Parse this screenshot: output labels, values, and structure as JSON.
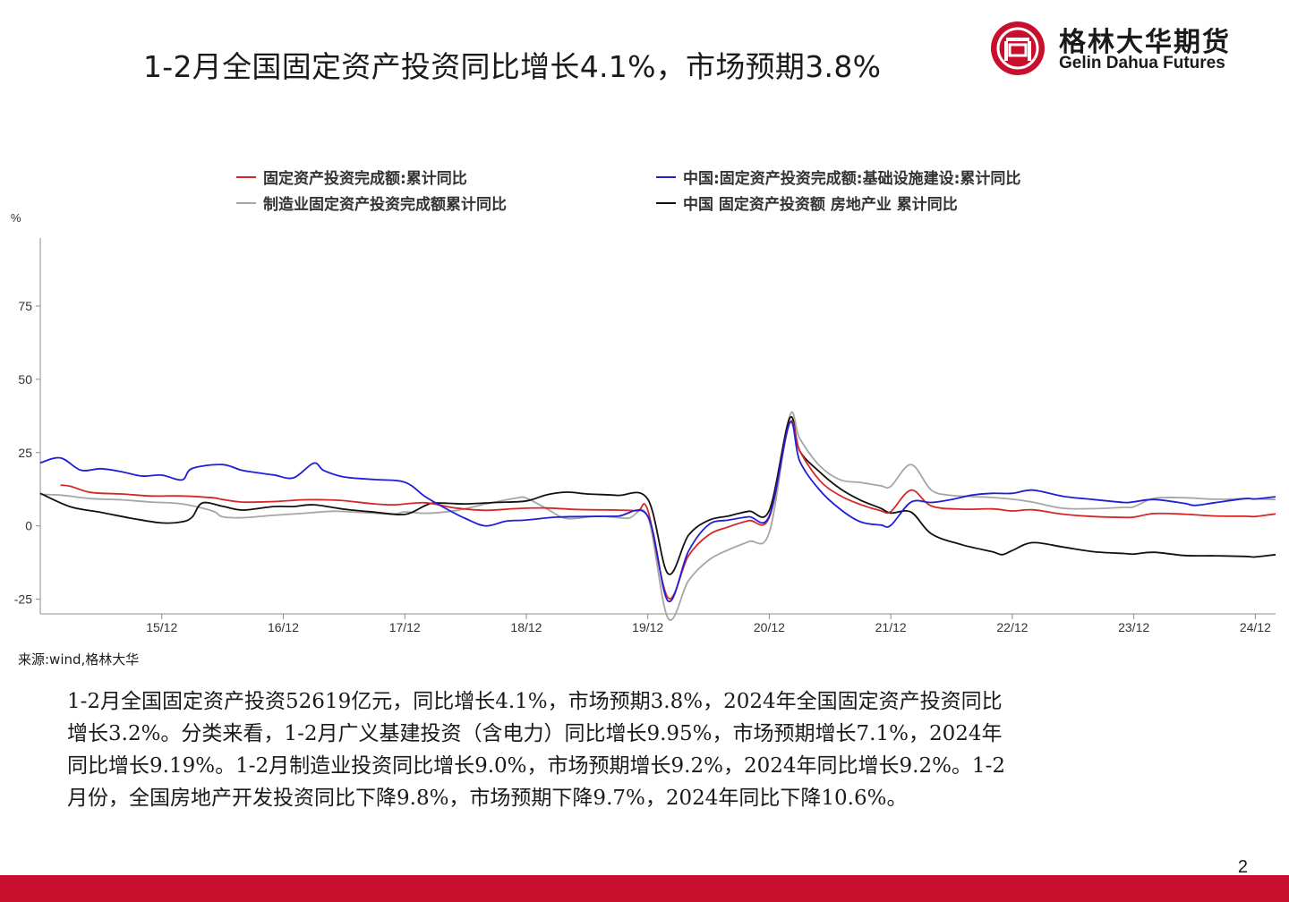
{
  "slide": {
    "title": "1-2月全国固定资产投资同比增长4.1%，市场预期3.8%",
    "source": "来源:wind,格林大华",
    "page_number": "2",
    "body_lines": [
      "1-2月全国固定资产投资52619亿元，同比增长4.1%，市场预期3.8%，2024年全国固定资产投资同比",
      "增长3.2%。分类来看，1-2月广义基建投资（含电力）同比增长9.95%，市场预期增长7.1%，2024年",
      "同比增长9.19%。1-2月制造业投资同比增长9.0%，市场预期增长9.2%，2024年同比增长9.2%。1-2",
      "月份，全国房地产开发投资同比下降9.8%，市场预期下降9.7%，2024年同比下降10.6%。"
    ]
  },
  "logo": {
    "name_cn": "格林大华期货",
    "name_en": "Gelin Dahua Futures"
  },
  "colors": {
    "brand_red": "#c8102e",
    "series_red": "#d62728",
    "series_blue": "#1f1fd6",
    "series_gray": "#a6a6a6",
    "series_black": "#111111",
    "axis": "#8c8c8c"
  },
  "chart_data": {
    "type": "line",
    "title": "",
    "xlabel": "",
    "ylabel": "%",
    "ylim": [
      -30,
      100
    ],
    "yticks": [
      -25,
      0,
      25,
      50,
      75
    ],
    "xlim": [
      "2014-12",
      "2025-02"
    ],
    "xticks": [
      "15/12",
      "16/12",
      "17/12",
      "18/12",
      "19/12",
      "20/12",
      "21/12",
      "22/12",
      "23/12",
      "24/12"
    ],
    "grid": false,
    "legend_position": "top",
    "series": [
      {
        "name": "固定资产投资完成额:累计同比",
        "color": "#d62728",
        "points": [
          [
            "2015-02",
            13.9
          ],
          [
            "2015-03",
            13.5
          ],
          [
            "2015-05",
            11.4
          ],
          [
            "2015-08",
            10.9
          ],
          [
            "2015-11",
            10.2
          ],
          [
            "2016-02",
            10.2
          ],
          [
            "2016-05",
            9.6
          ],
          [
            "2016-06",
            9.0
          ],
          [
            "2016-08",
            8.1
          ],
          [
            "2016-11",
            8.3
          ],
          [
            "2017-02",
            8.9
          ],
          [
            "2017-04",
            8.9
          ],
          [
            "2017-06",
            8.6
          ],
          [
            "2017-09",
            7.5
          ],
          [
            "2017-11",
            7.2
          ],
          [
            "2018-02",
            7.9
          ],
          [
            "2018-05",
            6.1
          ],
          [
            "2018-08",
            5.3
          ],
          [
            "2018-11",
            5.9
          ],
          [
            "2019-02",
            6.1
          ],
          [
            "2019-05",
            5.6
          ],
          [
            "2019-09",
            5.4
          ],
          [
            "2019-11",
            5.2
          ],
          [
            "2019-12",
            5.4
          ],
          [
            "2020-02",
            -24.5
          ],
          [
            "2020-04",
            -10.3
          ],
          [
            "2020-06",
            -3.1
          ],
          [
            "2020-08",
            -0.3
          ],
          [
            "2020-10",
            1.8
          ],
          [
            "2020-12",
            2.9
          ],
          [
            "2021-02",
            35.0
          ],
          [
            "2021-03",
            25.6
          ],
          [
            "2021-05",
            15.4
          ],
          [
            "2021-07",
            10.3
          ],
          [
            "2021-09",
            7.3
          ],
          [
            "2021-11",
            5.2
          ],
          [
            "2021-12",
            4.9
          ],
          [
            "2022-02",
            12.2
          ],
          [
            "2022-04",
            6.8
          ],
          [
            "2022-07",
            5.7
          ],
          [
            "2022-10",
            5.8
          ],
          [
            "2022-12",
            5.1
          ],
          [
            "2023-02",
            5.5
          ],
          [
            "2023-05",
            4.0
          ],
          [
            "2023-08",
            3.2
          ],
          [
            "2023-11",
            2.9
          ],
          [
            "2023-12",
            3.0
          ],
          [
            "2024-02",
            4.2
          ],
          [
            "2024-05",
            4.0
          ],
          [
            "2024-08",
            3.4
          ],
          [
            "2024-11",
            3.3
          ],
          [
            "2024-12",
            3.2
          ],
          [
            "2025-02",
            4.1
          ]
        ]
      },
      {
        "name": "中国:固定资产投资完成额:基础设施建设:累计同比",
        "color": "#1f1fd6",
        "points": [
          [
            "2014-12",
            21.5
          ],
          [
            "2015-02",
            23.2
          ],
          [
            "2015-04",
            19.0
          ],
          [
            "2015-06",
            19.5
          ],
          [
            "2015-08",
            18.5
          ],
          [
            "2015-10",
            17.0
          ],
          [
            "2015-12",
            17.3
          ],
          [
            "2016-02",
            15.7
          ],
          [
            "2016-03",
            19.6
          ],
          [
            "2016-06",
            20.9
          ],
          [
            "2016-08",
            18.9
          ],
          [
            "2016-11",
            17.4
          ],
          [
            "2017-01",
            16.4
          ],
          [
            "2017-03",
            21.4
          ],
          [
            "2017-04",
            18.9
          ],
          [
            "2017-06",
            16.7
          ],
          [
            "2017-09",
            15.8
          ],
          [
            "2017-12",
            14.9
          ],
          [
            "2018-02",
            10.0
          ],
          [
            "2018-04",
            6.0
          ],
          [
            "2018-06",
            2.5
          ],
          [
            "2018-08",
            0.0
          ],
          [
            "2018-10",
            1.6
          ],
          [
            "2018-12",
            2.0
          ],
          [
            "2019-03",
            3.0
          ],
          [
            "2019-06",
            3.2
          ],
          [
            "2019-09",
            3.3
          ],
          [
            "2019-12",
            3.3
          ],
          [
            "2020-02",
            -25.6
          ],
          [
            "2020-04",
            -8.8
          ],
          [
            "2020-06",
            0.4
          ],
          [
            "2020-08",
            2.0
          ],
          [
            "2020-10",
            3.1
          ],
          [
            "2020-12",
            3.4
          ],
          [
            "2021-02",
            35.0
          ],
          [
            "2021-03",
            22.1
          ],
          [
            "2021-05",
            12.1
          ],
          [
            "2021-07",
            5.7
          ],
          [
            "2021-09",
            1.4
          ],
          [
            "2021-11",
            0.3
          ],
          [
            "2021-12",
            0.2
          ],
          [
            "2022-02",
            8.1
          ],
          [
            "2022-04",
            8.0
          ],
          [
            "2022-06",
            9.0
          ],
          [
            "2022-08",
            10.5
          ],
          [
            "2022-10",
            11.1
          ],
          [
            "2022-12",
            11.1
          ],
          [
            "2023-02",
            12.2
          ],
          [
            "2023-05",
            10.1
          ],
          [
            "2023-08",
            9.0
          ],
          [
            "2023-11",
            8.0
          ],
          [
            "2023-12",
            8.2
          ],
          [
            "2024-02",
            9.0
          ],
          [
            "2024-05",
            7.7
          ],
          [
            "2024-06",
            7.0
          ],
          [
            "2024-08",
            7.9
          ],
          [
            "2024-11",
            9.3
          ],
          [
            "2024-12",
            9.19
          ],
          [
            "2025-02",
            9.95
          ]
        ]
      },
      {
        "name": "制造业固定资产投资完成额累计同比",
        "color": "#a6a6a6",
        "points": [
          [
            "2014-12",
            10.7
          ],
          [
            "2015-02",
            10.5
          ],
          [
            "2015-05",
            9.3
          ],
          [
            "2015-08",
            8.9
          ],
          [
            "2015-11",
            8.1
          ],
          [
            "2016-02",
            7.5
          ],
          [
            "2016-05",
            5.1
          ],
          [
            "2016-06",
            3.1
          ],
          [
            "2016-08",
            2.8
          ],
          [
            "2016-11",
            3.6
          ],
          [
            "2017-02",
            4.3
          ],
          [
            "2017-05",
            5.0
          ],
          [
            "2017-08",
            4.5
          ],
          [
            "2017-11",
            4.1
          ],
          [
            "2017-12",
            4.8
          ],
          [
            "2018-02",
            4.3
          ],
          [
            "2018-05",
            5.2
          ],
          [
            "2018-08",
            7.5
          ],
          [
            "2018-11",
            9.5
          ],
          [
            "2018-12",
            9.5
          ],
          [
            "2019-02",
            5.9
          ],
          [
            "2019-04",
            2.5
          ],
          [
            "2019-07",
            3.3
          ],
          [
            "2019-10",
            2.6
          ],
          [
            "2019-12",
            3.1
          ],
          [
            "2020-02",
            -31.5
          ],
          [
            "2020-04",
            -18.8
          ],
          [
            "2020-06",
            -11.7
          ],
          [
            "2020-08",
            -8.1
          ],
          [
            "2020-10",
            -5.3
          ],
          [
            "2020-12",
            -2.2
          ],
          [
            "2021-02",
            37.3
          ],
          [
            "2021-03",
            29.8
          ],
          [
            "2021-05",
            20.4
          ],
          [
            "2021-07",
            15.7
          ],
          [
            "2021-09",
            14.8
          ],
          [
            "2021-11",
            13.7
          ],
          [
            "2021-12",
            13.5
          ],
          [
            "2022-02",
            20.9
          ],
          [
            "2022-04",
            12.2
          ],
          [
            "2022-06",
            10.4
          ],
          [
            "2022-08",
            10.0
          ],
          [
            "2022-10",
            9.7
          ],
          [
            "2022-12",
            9.1
          ],
          [
            "2023-02",
            8.1
          ],
          [
            "2023-05",
            6.0
          ],
          [
            "2023-08",
            5.9
          ],
          [
            "2023-11",
            6.3
          ],
          [
            "2023-12",
            6.5
          ],
          [
            "2024-02",
            9.4
          ],
          [
            "2024-05",
            9.6
          ],
          [
            "2024-08",
            9.1
          ],
          [
            "2024-11",
            9.3
          ],
          [
            "2024-12",
            9.2
          ],
          [
            "2025-02",
            9.0
          ]
        ]
      },
      {
        "name": "中国 固定资产投资额 房地产业 累计同比",
        "color": "#111111",
        "points": [
          [
            "2014-12",
            11.1
          ],
          [
            "2015-03",
            6.5
          ],
          [
            "2015-06",
            4.6
          ],
          [
            "2015-09",
            2.6
          ],
          [
            "2015-12",
            1.0
          ],
          [
            "2016-02",
            1.4
          ],
          [
            "2016-03",
            3.0
          ],
          [
            "2016-04",
            7.8
          ],
          [
            "2016-06",
            6.7
          ],
          [
            "2016-08",
            5.4
          ],
          [
            "2016-11",
            6.6
          ],
          [
            "2017-01",
            6.6
          ],
          [
            "2017-03",
            7.2
          ],
          [
            "2017-06",
            5.7
          ],
          [
            "2017-09",
            4.7
          ],
          [
            "2017-12",
            3.9
          ],
          [
            "2018-02",
            6.9
          ],
          [
            "2018-03",
            7.8
          ],
          [
            "2018-06",
            7.5
          ],
          [
            "2018-09",
            8.0
          ],
          [
            "2018-12",
            8.5
          ],
          [
            "2019-02",
            10.6
          ],
          [
            "2019-04",
            11.5
          ],
          [
            "2019-06",
            10.9
          ],
          [
            "2019-09",
            10.4
          ],
          [
            "2019-12",
            9.1
          ],
          [
            "2020-02",
            -16.3
          ],
          [
            "2020-04",
            -3.3
          ],
          [
            "2020-06",
            1.9
          ],
          [
            "2020-08",
            3.4
          ],
          [
            "2020-10",
            5.0
          ],
          [
            "2020-12",
            5.3
          ],
          [
            "2021-02",
            36.6
          ],
          [
            "2021-03",
            25.6
          ],
          [
            "2021-05",
            18.3
          ],
          [
            "2021-07",
            12.7
          ],
          [
            "2021-09",
            8.8
          ],
          [
            "2021-11",
            6.0
          ],
          [
            "2021-12",
            4.4
          ],
          [
            "2022-02",
            4.7
          ],
          [
            "2022-04",
            -2.7
          ],
          [
            "2022-07",
            -6.4
          ],
          [
            "2022-10",
            -8.8
          ],
          [
            "2022-11",
            -9.8
          ],
          [
            "2022-12",
            -8.4
          ],
          [
            "2023-02",
            -5.7
          ],
          [
            "2023-05",
            -7.2
          ],
          [
            "2023-08",
            -8.8
          ],
          [
            "2023-11",
            -9.4
          ],
          [
            "2023-12",
            -9.6
          ],
          [
            "2024-02",
            -9.0
          ],
          [
            "2024-05",
            -10.1
          ],
          [
            "2024-08",
            -10.2
          ],
          [
            "2024-11",
            -10.4
          ],
          [
            "2024-12",
            -10.6
          ],
          [
            "2025-02",
            -9.8
          ]
        ]
      }
    ]
  }
}
